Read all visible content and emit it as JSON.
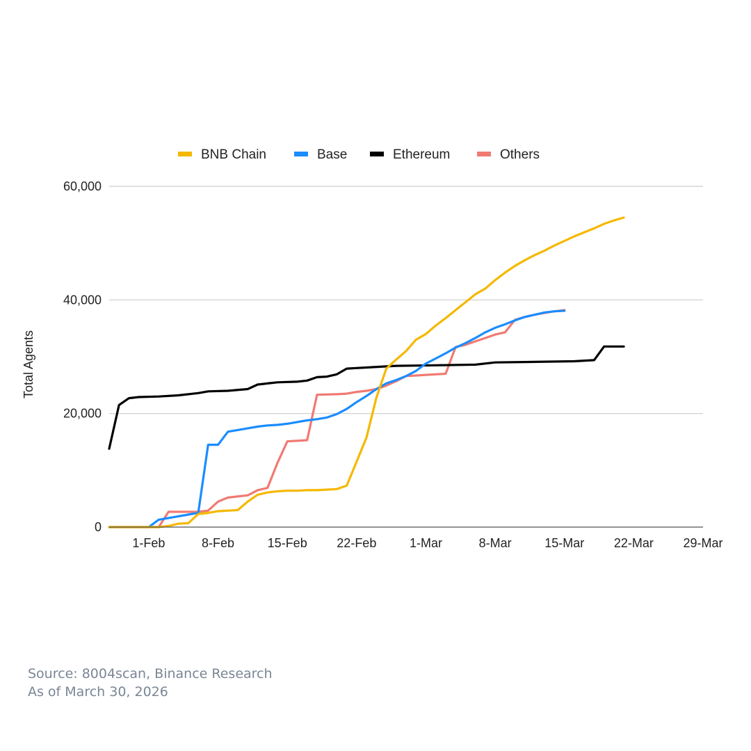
{
  "chart_data": {
    "type": "line",
    "title": "",
    "xlabel": "",
    "ylabel": "Total Agents",
    "ylim": [
      0,
      60000
    ],
    "y_ticks": [
      0,
      20000,
      40000,
      60000
    ],
    "y_tick_labels": [
      "0",
      "20,000",
      "40,000",
      "60,000"
    ],
    "x_start_day": -3,
    "x_end_day": 57,
    "x_ticks": [
      {
        "day": 1,
        "label": "1-Feb"
      },
      {
        "day": 8,
        "label": "8-Feb"
      },
      {
        "day": 15,
        "label": "15-Feb"
      },
      {
        "day": 22,
        "label": "22-Feb"
      },
      {
        "day": 29,
        "label": "1-Mar"
      },
      {
        "day": 36,
        "label": "8-Mar"
      },
      {
        "day": 43,
        "label": "15-Mar"
      },
      {
        "day": 50,
        "label": "22-Mar"
      },
      {
        "day": 57,
        "label": "29-Mar"
      }
    ],
    "legend_position": "top-center",
    "series": [
      {
        "name": "BNB Chain",
        "color": "#f5b800",
        "points": [
          [
            -3,
            0
          ],
          [
            2,
            0
          ],
          [
            3,
            200
          ],
          [
            4,
            600
          ],
          [
            5,
            700
          ],
          [
            6,
            2300
          ],
          [
            7,
            2500
          ],
          [
            8,
            2800
          ],
          [
            9,
            2900
          ],
          [
            10,
            3000
          ],
          [
            11,
            4500
          ],
          [
            12,
            5700
          ],
          [
            13,
            6100
          ],
          [
            14,
            6300
          ],
          [
            15,
            6400
          ],
          [
            16,
            6400
          ],
          [
            17,
            6500
          ],
          [
            18,
            6500
          ],
          [
            19,
            6600
          ],
          [
            20,
            6700
          ],
          [
            21,
            7300
          ],
          [
            22,
            11500
          ],
          [
            23,
            15800
          ],
          [
            24,
            22800
          ],
          [
            25,
            27900
          ],
          [
            26,
            29500
          ],
          [
            27,
            31000
          ],
          [
            28,
            33000
          ],
          [
            29,
            34000
          ],
          [
            30,
            35500
          ],
          [
            31,
            36800
          ],
          [
            32,
            38200
          ],
          [
            33,
            39600
          ],
          [
            34,
            41000
          ],
          [
            35,
            42000
          ],
          [
            36,
            43500
          ],
          [
            37,
            44800
          ],
          [
            38,
            46000
          ],
          [
            39,
            47000
          ],
          [
            40,
            47900
          ],
          [
            41,
            48700
          ],
          [
            42,
            49600
          ],
          [
            43,
            50400
          ],
          [
            44,
            51200
          ],
          [
            45,
            51900
          ],
          [
            46,
            52600
          ],
          [
            47,
            53400
          ],
          [
            48,
            54000
          ],
          [
            49,
            54500
          ]
        ]
      },
      {
        "name": "Base",
        "color": "#1a8cff",
        "points": [
          [
            -3,
            0
          ],
          [
            1,
            0
          ],
          [
            2,
            1300
          ],
          [
            3,
            1600
          ],
          [
            4,
            1900
          ],
          [
            5,
            2200
          ],
          [
            6,
            2500
          ],
          [
            7,
            14500
          ],
          [
            8,
            14500
          ],
          [
            9,
            16800
          ],
          [
            10,
            17100
          ],
          [
            11,
            17400
          ],
          [
            12,
            17700
          ],
          [
            13,
            17900
          ],
          [
            14,
            18000
          ],
          [
            15,
            18200
          ],
          [
            16,
            18500
          ],
          [
            17,
            18800
          ],
          [
            18,
            19000
          ],
          [
            19,
            19300
          ],
          [
            20,
            19900
          ],
          [
            21,
            20800
          ],
          [
            22,
            22000
          ],
          [
            23,
            23100
          ],
          [
            24,
            24300
          ],
          [
            25,
            25300
          ],
          [
            26,
            25900
          ],
          [
            27,
            26600
          ],
          [
            28,
            27500
          ],
          [
            29,
            28800
          ],
          [
            30,
            29700
          ],
          [
            31,
            30600
          ],
          [
            32,
            31600
          ],
          [
            33,
            32400
          ],
          [
            34,
            33300
          ],
          [
            35,
            34300
          ],
          [
            36,
            35100
          ],
          [
            37,
            35700
          ],
          [
            38,
            36400
          ],
          [
            39,
            37000
          ],
          [
            40,
            37400
          ],
          [
            41,
            37800
          ],
          [
            42,
            38000
          ],
          [
            43,
            38100
          ]
        ]
      },
      {
        "name": "Ethereum",
        "color": "#000000",
        "points": [
          [
            -3,
            13800
          ],
          [
            -2,
            21500
          ],
          [
            -1,
            22700
          ],
          [
            0,
            22900
          ],
          [
            2,
            23000
          ],
          [
            4,
            23200
          ],
          [
            6,
            23600
          ],
          [
            7,
            23900
          ],
          [
            9,
            24000
          ],
          [
            11,
            24300
          ],
          [
            12,
            25100
          ],
          [
            13,
            25300
          ],
          [
            14,
            25500
          ],
          [
            16,
            25600
          ],
          [
            17,
            25800
          ],
          [
            18,
            26400
          ],
          [
            19,
            26500
          ],
          [
            20,
            26900
          ],
          [
            21,
            27900
          ],
          [
            23,
            28100
          ],
          [
            25,
            28300
          ],
          [
            26,
            28400
          ],
          [
            30,
            28500
          ],
          [
            34,
            28600
          ],
          [
            36,
            29000
          ],
          [
            40,
            29100
          ],
          [
            44,
            29200
          ],
          [
            46,
            29400
          ],
          [
            47,
            31800
          ],
          [
            49,
            31800
          ]
        ]
      },
      {
        "name": "Others",
        "color": "#f07a72",
        "points": [
          [
            -3,
            0
          ],
          [
            2,
            0
          ],
          [
            3,
            2700
          ],
          [
            6,
            2700
          ],
          [
            7,
            2900
          ],
          [
            8,
            4500
          ],
          [
            9,
            5200
          ],
          [
            10,
            5400
          ],
          [
            11,
            5600
          ],
          [
            12,
            6500
          ],
          [
            13,
            6900
          ],
          [
            14,
            11300
          ],
          [
            15,
            15100
          ],
          [
            16,
            15200
          ],
          [
            17,
            15300
          ],
          [
            18,
            23300
          ],
          [
            20,
            23400
          ],
          [
            21,
            23500
          ],
          [
            22,
            23800
          ],
          [
            23,
            24000
          ],
          [
            24,
            24300
          ],
          [
            25,
            24900
          ],
          [
            26,
            25700
          ],
          [
            27,
            26600
          ],
          [
            28,
            26700
          ],
          [
            29,
            26800
          ],
          [
            30,
            26900
          ],
          [
            31,
            27000
          ],
          [
            32,
            31700
          ],
          [
            33,
            32100
          ],
          [
            34,
            32700
          ],
          [
            35,
            33300
          ],
          [
            36,
            33900
          ],
          [
            37,
            34300
          ],
          [
            38,
            36500
          ],
          [
            39,
            37000
          ],
          [
            40,
            37400
          ],
          [
            41,
            37700
          ],
          [
            42,
            38000
          ],
          [
            43,
            38200
          ]
        ]
      }
    ]
  },
  "footer": {
    "source": "Source: 8004scan, Binance Research",
    "as_of": "As of March 30, 2026"
  }
}
